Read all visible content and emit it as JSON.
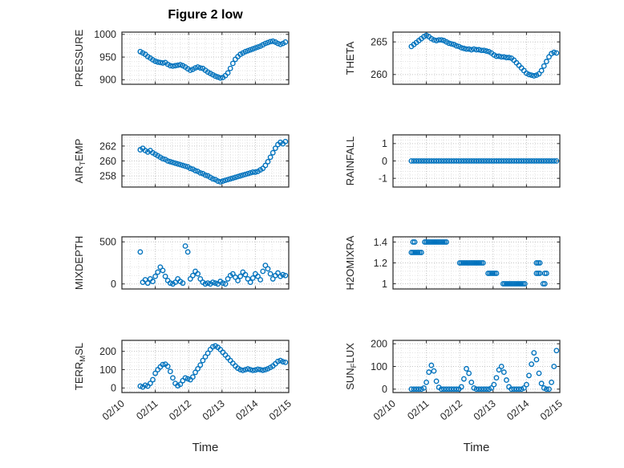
{
  "figure": {
    "background": "#ffffff"
  },
  "chart_data": {
    "type": "scatter",
    "title": "Figure 2 low",
    "xlabel": "Time",
    "marker_color": "#0072BD",
    "axis_color": "#262626",
    "grid": "on",
    "legend": "none",
    "x_ticks": [
      0,
      1,
      2,
      3,
      4,
      5
    ],
    "x_tick_labels": [
      "02/10",
      "02/11",
      "02/12",
      "02/13",
      "02/14",
      "02/15"
    ],
    "x_shared": [
      0.55,
      0.625,
      0.7,
      0.775,
      0.85,
      0.925,
      1.0,
      1.075,
      1.15,
      1.225,
      1.3,
      1.375,
      1.45,
      1.525,
      1.6,
      1.675,
      1.75,
      1.825,
      1.9,
      1.975,
      2.05,
      2.125,
      2.2,
      2.275,
      2.35,
      2.425,
      2.5,
      2.575,
      2.65,
      2.725,
      2.8,
      2.875,
      2.95,
      3.025,
      3.1,
      3.175,
      3.25,
      3.325,
      3.4,
      3.475,
      3.55,
      3.625,
      3.7,
      3.775,
      3.85,
      3.925,
      4.0,
      4.075,
      4.15,
      4.225,
      4.3,
      4.375,
      4.45,
      4.525,
      4.6,
      4.675,
      4.75,
      4.825,
      4.9
    ],
    "charts": [
      {
        "name": "PRESSURE",
        "ylabel_parts": {
          "pre": "PRESSURE",
          "sub": "",
          "post": ""
        },
        "ylim": [
          890,
          1005
        ],
        "yticks": [
          900,
          950,
          1000
        ],
        "show_xticklabels": false,
        "y": [
          962,
          959,
          956,
          951,
          948,
          944,
          941,
          939,
          938,
          937,
          938,
          934,
          931,
          930,
          931,
          932,
          933,
          931,
          928,
          924,
          921,
          923,
          926,
          928,
          926,
          925,
          921,
          917,
          914,
          911,
          908,
          906,
          904,
          905,
          909,
          915,
          925,
          936,
          945,
          951,
          956,
          959,
          962,
          964,
          966,
          968,
          970,
          972,
          974,
          977,
          980,
          982,
          984,
          985,
          983,
          980,
          978,
          980,
          983
        ]
      },
      {
        "name": "THETA",
        "ylabel_parts": {
          "pre": "THETA",
          "sub": "",
          "post": ""
        },
        "ylim": [
          258.5,
          266.5
        ],
        "yticks": [
          260,
          265
        ],
        "show_xticklabels": false,
        "y": [
          264.3,
          264.6,
          264.9,
          265.2,
          265.5,
          265.8,
          266.0,
          265.8,
          265.5,
          265.3,
          265.2,
          265.3,
          265.3,
          265.2,
          265.0,
          264.8,
          264.7,
          264.6,
          264.4,
          264.3,
          264.1,
          264.0,
          263.9,
          263.9,
          263.8,
          263.9,
          263.8,
          263.8,
          263.7,
          263.7,
          263.6,
          263.5,
          263.3,
          263.0,
          262.8,
          262.8,
          262.7,
          262.7,
          262.6,
          262.6,
          262.5,
          262.2,
          261.8,
          261.4,
          261.0,
          260.6,
          260.2,
          260.0,
          259.9,
          259.8,
          259.9,
          260.1,
          260.6,
          261.3,
          262.0,
          262.7,
          263.2,
          263.4,
          263.3
        ]
      },
      {
        "name": "AIR_TEMP",
        "ylabel_parts": {
          "pre": "AIR",
          "sub": "T",
          "post": "EMP"
        },
        "ylim": [
          256.5,
          263.5
        ],
        "yticks": [
          258,
          260,
          262
        ],
        "show_xticklabels": false,
        "y": [
          261.5,
          261.7,
          261.4,
          261.2,
          261.4,
          261.1,
          260.9,
          260.7,
          260.5,
          260.3,
          260.2,
          260.0,
          259.9,
          259.8,
          259.7,
          259.6,
          259.5,
          259.4,
          259.3,
          259.2,
          259.0,
          258.9,
          258.7,
          258.6,
          258.4,
          258.3,
          258.1,
          258.0,
          257.8,
          257.6,
          257.5,
          257.3,
          257.2,
          257.3,
          257.4,
          257.5,
          257.6,
          257.7,
          257.8,
          257.9,
          258.0,
          258.1,
          258.2,
          258.3,
          258.4,
          258.5,
          258.5,
          258.6,
          258.8,
          259.0,
          259.4,
          259.9,
          260.5,
          261.1,
          261.7,
          262.2,
          262.5,
          262.3,
          262.6
        ]
      },
      {
        "name": "RAINFALL",
        "ylabel_parts": {
          "pre": "RAINFALL",
          "sub": "",
          "post": ""
        },
        "ylim": [
          -1.5,
          1.5
        ],
        "yticks": [
          -1,
          0,
          1
        ],
        "show_xticklabels": false,
        "y": [
          0,
          0,
          0,
          0,
          0,
          0,
          0,
          0,
          0,
          0,
          0,
          0,
          0,
          0,
          0,
          0,
          0,
          0,
          0,
          0,
          0,
          0,
          0,
          0,
          0,
          0,
          0,
          0,
          0,
          0,
          0,
          0,
          0,
          0,
          0,
          0,
          0,
          0,
          0,
          0,
          0,
          0,
          0,
          0,
          0,
          0,
          0,
          0,
          0,
          0,
          0,
          0,
          0,
          0,
          0,
          0,
          0,
          0,
          0
        ]
      },
      {
        "name": "MIXDEPTH",
        "ylabel_parts": {
          "pre": "MIXDEPTH",
          "sub": "",
          "post": ""
        },
        "ylim": [
          -60,
          560
        ],
        "yticks": [
          0,
          500
        ],
        "show_xticklabels": false,
        "y": [
          380,
          20,
          50,
          10,
          60,
          30,
          90,
          140,
          200,
          160,
          90,
          40,
          10,
          0,
          20,
          60,
          30,
          10,
          450,
          380,
          60,
          100,
          150,
          120,
          60,
          20,
          0,
          10,
          0,
          20,
          10,
          0,
          30,
          10,
          0,
          60,
          100,
          120,
          80,
          40,
          90,
          140,
          110,
          60,
          20,
          70,
          120,
          90,
          50,
          150,
          220,
          180,
          120,
          60,
          100,
          130,
          90,
          110,
          100
        ]
      },
      {
        "name": "H2OMIXRA",
        "ylabel_parts": {
          "pre": "H2OMIXRA",
          "sub": "",
          "post": ""
        },
        "ylim": [
          0.95,
          1.45
        ],
        "yticks": [
          1,
          1.2,
          1.4
        ],
        "show_xticklabels": false,
        "x": [
          0.55,
          0.6,
          0.65,
          0.7,
          0.75,
          0.8,
          0.85,
          0.6,
          0.65,
          0.95,
          1.0,
          1.05,
          1.1,
          1.15,
          1.2,
          1.25,
          1.3,
          1.35,
          1.4,
          1.45,
          1.5,
          1.55,
          1.6,
          2.0,
          2.05,
          2.1,
          2.15,
          2.2,
          2.25,
          2.3,
          2.35,
          2.4,
          2.45,
          2.5,
          2.55,
          2.6,
          2.65,
          2.7,
          2.85,
          2.9,
          2.95,
          3.0,
          3.05,
          3.1,
          3.3,
          3.35,
          3.4,
          3.45,
          3.5,
          3.55,
          3.6,
          3.65,
          3.7,
          3.75,
          3.8,
          3.85,
          3.9,
          3.95,
          4.3,
          4.35,
          4.4,
          4.3,
          4.35,
          4.4,
          4.55,
          4.6,
          4.5,
          4.55
        ],
        "y": [
          1.3,
          1.3,
          1.3,
          1.3,
          1.3,
          1.3,
          1.3,
          1.4,
          1.4,
          1.4,
          1.4,
          1.4,
          1.4,
          1.4,
          1.4,
          1.4,
          1.4,
          1.4,
          1.4,
          1.4,
          1.4,
          1.4,
          1.4,
          1.2,
          1.2,
          1.2,
          1.2,
          1.2,
          1.2,
          1.2,
          1.2,
          1.2,
          1.2,
          1.2,
          1.2,
          1.2,
          1.2,
          1.2,
          1.1,
          1.1,
          1.1,
          1.1,
          1.1,
          1.1,
          1.0,
          1.0,
          1.0,
          1.0,
          1.0,
          1.0,
          1.0,
          1.0,
          1.0,
          1.0,
          1.0,
          1.0,
          1.0,
          1.0,
          1.2,
          1.2,
          1.2,
          1.1,
          1.1,
          1.1,
          1.1,
          1.1,
          1.0,
          1.0
        ]
      },
      {
        "name": "TERR_MSL",
        "ylabel_parts": {
          "pre": "TERR",
          "sub": "M",
          "post": "SL"
        },
        "ylim": [
          -25,
          260
        ],
        "yticks": [
          0,
          100,
          200
        ],
        "show_xticklabels": true,
        "y": [
          10,
          5,
          15,
          10,
          25,
          45,
          80,
          100,
          115,
          128,
          130,
          118,
          90,
          55,
          25,
          12,
          20,
          40,
          55,
          50,
          45,
          60,
          85,
          105,
          125,
          150,
          170,
          190,
          210,
          225,
          230,
          222,
          210,
          195,
          180,
          165,
          150,
          135,
          120,
          108,
          100,
          96,
          100,
          104,
          100,
          96,
          98,
          102,
          100,
          97,
          100,
          105,
          112,
          120,
          132,
          145,
          150,
          143,
          140
        ]
      },
      {
        "name": "SUN_FLUX",
        "ylabel_parts": {
          "pre": "SUN",
          "sub": "F",
          "post": "LUX"
        },
        "ylim": [
          -15,
          215
        ],
        "yticks": [
          0,
          100,
          200
        ],
        "show_xticklabels": true,
        "y": [
          0,
          0,
          0,
          0,
          0,
          5,
          30,
          75,
          105,
          80,
          35,
          8,
          0,
          0,
          0,
          0,
          0,
          0,
          0,
          0,
          10,
          45,
          90,
          70,
          30,
          5,
          0,
          0,
          0,
          0,
          0,
          0,
          5,
          20,
          50,
          85,
          100,
          75,
          40,
          10,
          0,
          0,
          0,
          0,
          0,
          5,
          20,
          60,
          110,
          160,
          130,
          70,
          25,
          5,
          0,
          0,
          30,
          100,
          170
        ]
      }
    ]
  }
}
